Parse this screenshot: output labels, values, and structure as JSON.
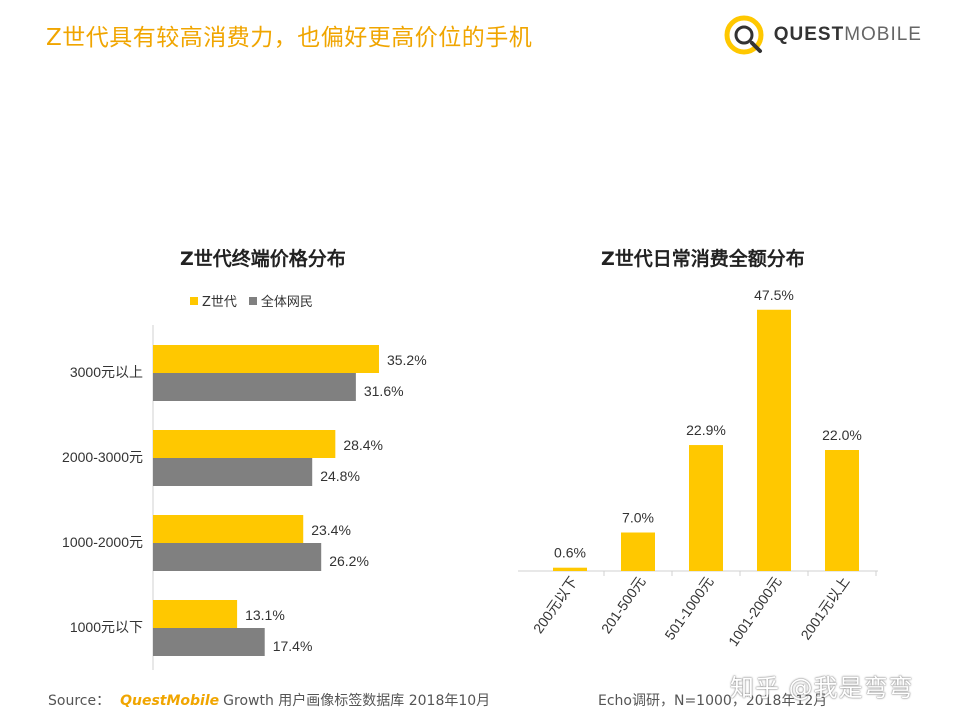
{
  "header": {
    "title": "Z世代具有较高消费力，也偏好更高价位的手机"
  },
  "brand": {
    "part1": "QUEST",
    "part2": "MOBILE"
  },
  "colors": {
    "gen_z": "#ffc800",
    "all": "#808080",
    "title": "#f0a500"
  },
  "legend": {
    "gen_z": "Z世代",
    "all": "全体网民"
  },
  "footer": {
    "source_label": "Source：",
    "source_brand": "QuestMobile",
    "source_text": "Growth 用户画像标签数据库 2018年10月",
    "source2": "Echo调研，N=1000，2018年12月"
  },
  "watermark": "知乎 @我是弯弯",
  "chart_data": [
    {
      "type": "bar",
      "orientation": "horizontal",
      "title": "Z世代终端价格分布",
      "categories": [
        "3000元以上",
        "2000-3000元",
        "1000-2000元",
        "1000元以下"
      ],
      "series": [
        {
          "name": "Z世代",
          "values": [
            35.2,
            28.4,
            23.4,
            13.1
          ],
          "labels": [
            "35.2%",
            "28.4%",
            "23.4%",
            "13.1%"
          ]
        },
        {
          "name": "全体网民",
          "values": [
            31.6,
            24.8,
            26.2,
            17.4
          ],
          "labels": [
            "31.6%",
            "24.8%",
            "26.2%",
            "17.4%"
          ]
        }
      ],
      "xlim": [
        0,
        40
      ],
      "legend": "top-left"
    },
    {
      "type": "bar",
      "orientation": "vertical",
      "title": "Z世代日常消费全额分布",
      "categories": [
        "200元以下",
        "201-500元",
        "501-1000元",
        "1001-2000元",
        "2001元以上"
      ],
      "values": [
        0.6,
        7.0,
        22.9,
        47.5,
        22.0
      ],
      "labels": [
        "0.6%",
        "7.0%",
        "22.9%",
        "47.5%",
        "22.0%"
      ],
      "ylim": [
        0,
        50
      ]
    }
  ]
}
